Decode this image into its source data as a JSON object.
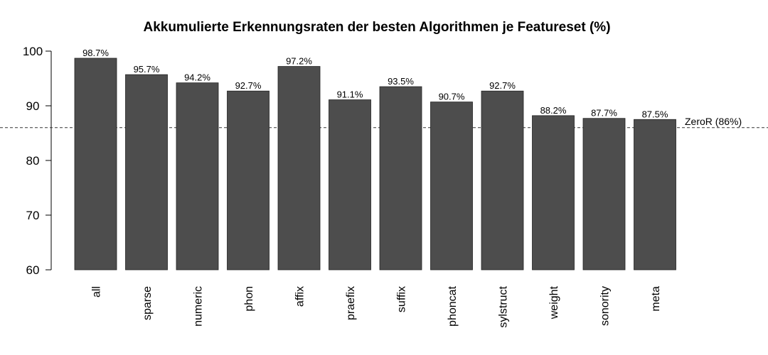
{
  "chart_data": {
    "type": "bar",
    "title": "Akkumulierte Erkennungsraten der besten Algorithmen je Featureset (%)",
    "xlabel": "",
    "ylabel": "",
    "ylim": [
      60,
      100
    ],
    "yticks": [
      60,
      70,
      80,
      90,
      100
    ],
    "categories": [
      "all",
      "sparse",
      "numeric",
      "phon",
      "affix",
      "praefix",
      "suffix",
      "phoncat",
      "sylstruct",
      "weight",
      "sonority",
      "meta"
    ],
    "values": [
      98.7,
      95.7,
      94.2,
      92.7,
      97.2,
      91.1,
      93.5,
      90.7,
      92.7,
      88.2,
      87.7,
      87.5
    ],
    "data_labels": [
      "98.7%",
      "95.7%",
      "94.2%",
      "92.7%",
      "97.2%",
      "91.1%",
      "93.5%",
      "90.7%",
      "92.7%",
      "88.2%",
      "87.7%",
      "87.5%"
    ],
    "reference_line": {
      "value": 86,
      "label": "ZeroR (86%)",
      "style": "dashed"
    },
    "bar_color": "#4d4d4d",
    "grid": false
  }
}
